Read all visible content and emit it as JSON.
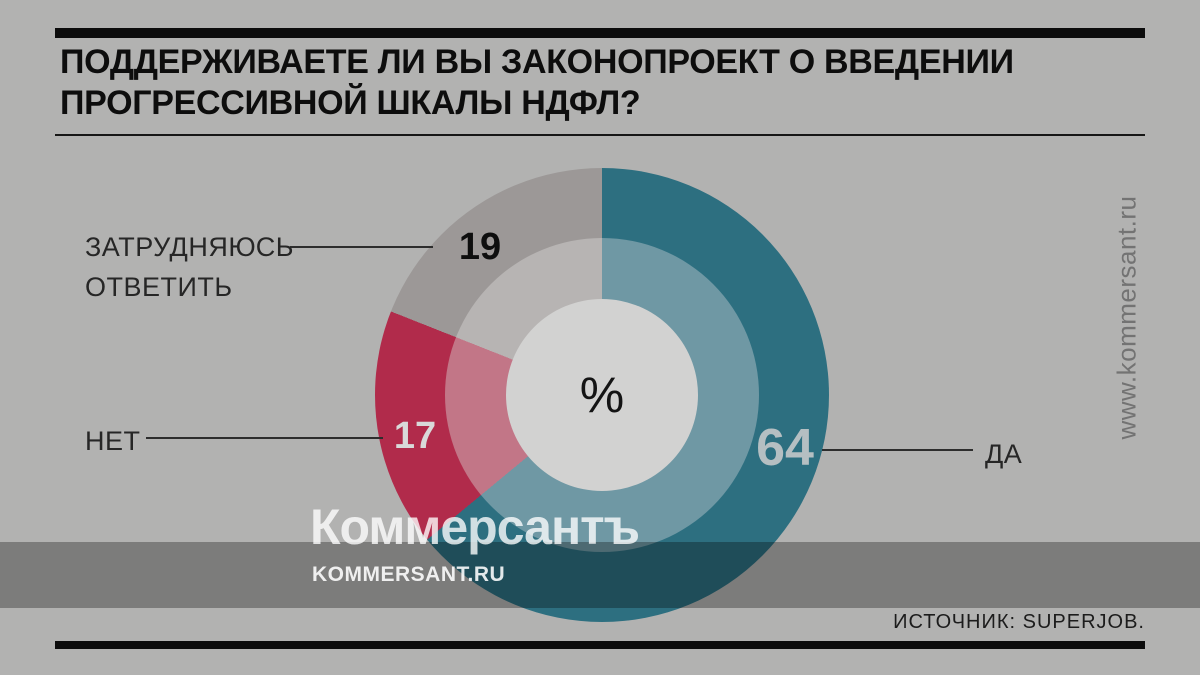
{
  "title": {
    "line1": "ПОДДЕРЖИВАЕТЕ ЛИ ВЫ ЗАКОНОПРОЕКТ О ВВЕДЕНИИ",
    "line2": "ПРОГРЕССИВНОЙ ШКАЛЫ НДФЛ?"
  },
  "chart_data": {
    "type": "pie",
    "subtype": "donut-double-ring",
    "title": "ПОДДЕРЖИВАЕТЕ ЛИ ВЫ ЗАКОНОПРОЕКТ О ВВЕДЕНИИ ПРОГРЕССИВНОЙ ШКАЛЫ НДФЛ?",
    "unit": "%",
    "center_label": "%",
    "start_angle_deg": 0,
    "direction": "clockwise",
    "legend_position": "callout-labels",
    "categories": [
      "ДА",
      "НЕТ",
      "ЗАТРУДНЯЮСЬ ОТВЕТИТЬ"
    ],
    "values": [
      64,
      17,
      19
    ],
    "segments": [
      {
        "label": "ДА",
        "value": 64,
        "color": "#2d6f80",
        "color_inner": "#6f98a4",
        "value_label_color": "#b5bfc2"
      },
      {
        "label": "НЕТ",
        "value": 17,
        "color": "#b12b4b",
        "color_inner": "#c27687",
        "value_label_color": "#d9d9d9"
      },
      {
        "label": "ЗАТРУДНЯЮСЬ ОТВЕТИТЬ",
        "value": 19,
        "color": "#9c9897",
        "color_inner": "#b7b4b3",
        "value_label_color": "#0e0e0e"
      }
    ],
    "source": "SUPERJOB"
  },
  "labels": {
    "da": "ДА",
    "net": "НЕТ",
    "zatr_line1": "ЗАТРУДНЯЮСЬ",
    "zatr_line2": "ОТВЕТИТЬ"
  },
  "watermark": "www.kommersant.ru",
  "logo": {
    "name": "Коммерсантъ",
    "url": "KOMMERSANT.RU"
  },
  "footer": {
    "source_line": "ИСТОЧНИК: SUPERJOB."
  },
  "colors": {
    "background": "#b2b2b1",
    "band_overlay": "rgba(0,0,0,0.30)",
    "hole": "#d2d2d1",
    "bars": "#0c0c0c",
    "teal": "#2d6f80",
    "crimson": "#b12b4b",
    "gray": "#9c9897"
  }
}
